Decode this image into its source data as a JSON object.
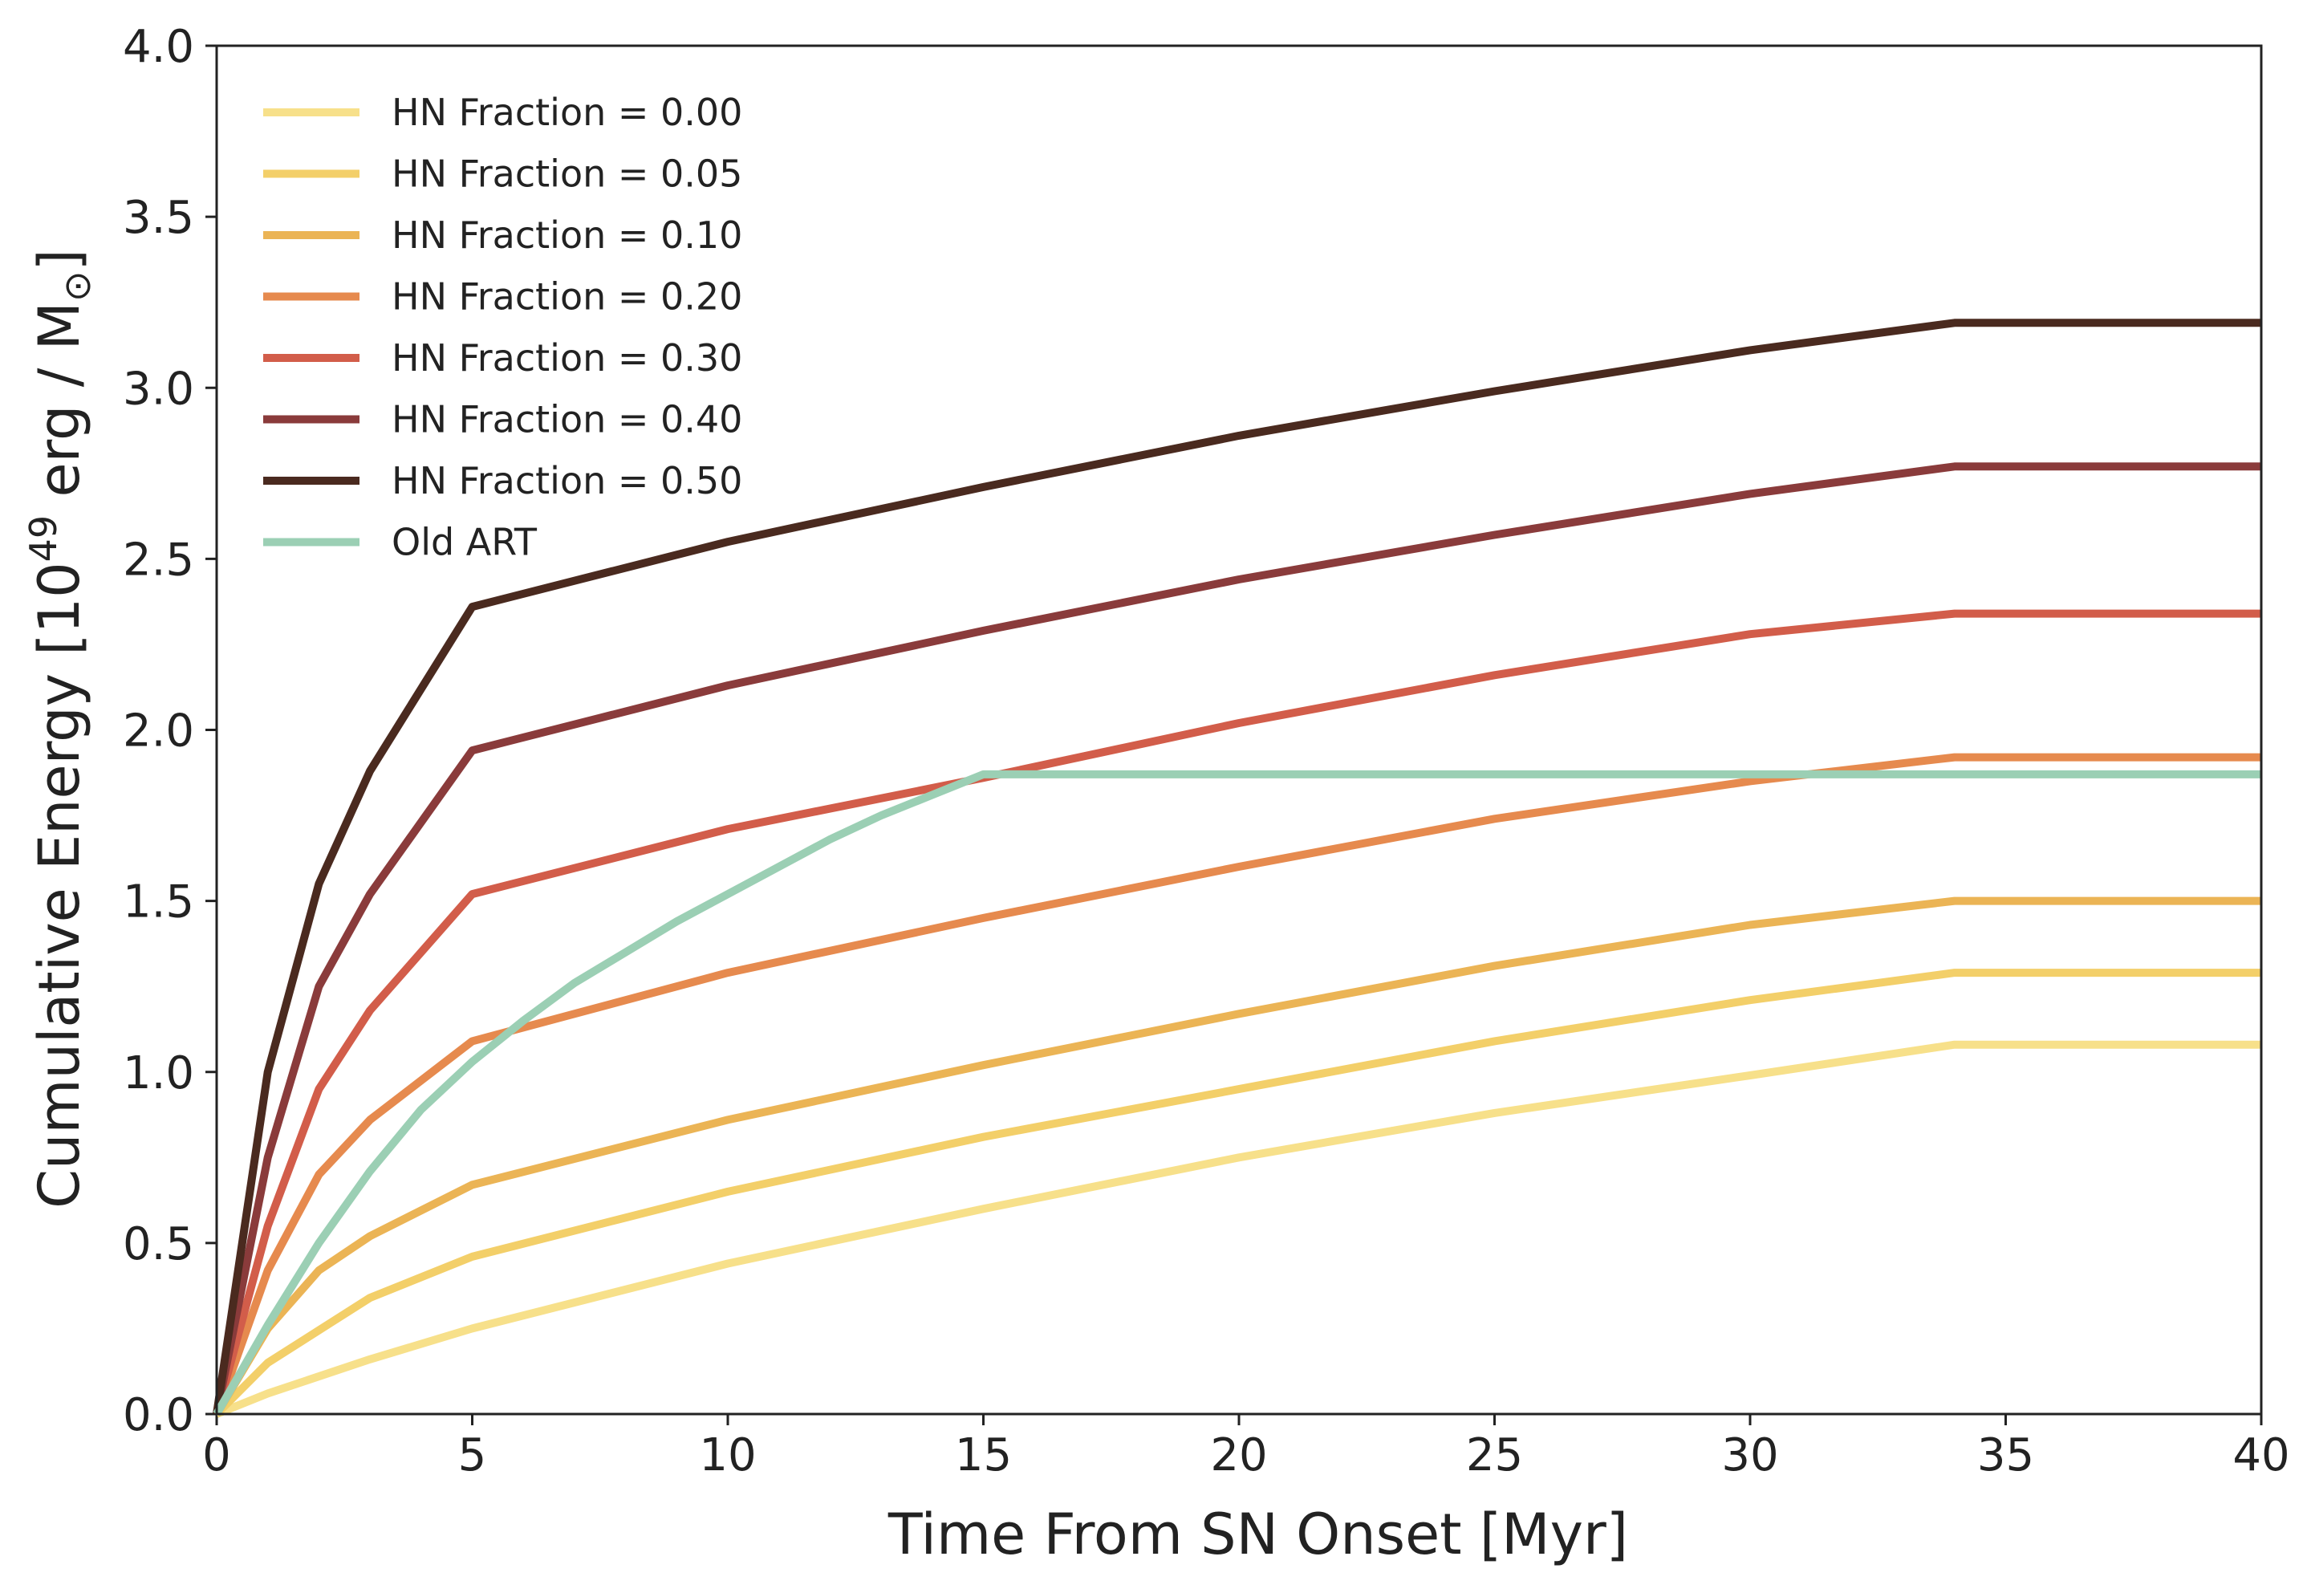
{
  "chart_data": {
    "type": "line",
    "title": "",
    "xlabel": "Time From SN Onset [Myr]",
    "ylabel": {
      "prefix": "Cumulative Energy [10",
      "exponent": "49",
      "middle": " erg / M",
      "subscript": "⊙",
      "suffix": "]"
    },
    "xlim": [
      0,
      40
    ],
    "ylim": [
      0,
      4.0
    ],
    "xticks": [
      "0",
      "5",
      "10",
      "15",
      "20",
      "25",
      "30",
      "35",
      "40"
    ],
    "yticks": [
      "0.0",
      "0.5",
      "1.0",
      "1.5",
      "2.0",
      "2.5",
      "3.0",
      "3.5",
      "4.0"
    ],
    "grid": false,
    "legend_position": "top-left",
    "series": [
      {
        "name": "HN Fraction = 0.00",
        "color": "#f7e08a",
        "x": [
          0,
          1,
          3,
          5,
          10,
          15,
          20,
          25,
          30,
          34,
          40
        ],
        "y": [
          0.0,
          0.06,
          0.16,
          0.25,
          0.44,
          0.6,
          0.75,
          0.88,
          0.99,
          1.08,
          1.08
        ]
      },
      {
        "name": "HN Fraction = 0.05",
        "color": "#f3cf69",
        "x": [
          0,
          1,
          3,
          5,
          10,
          15,
          20,
          25,
          30,
          34,
          40
        ],
        "y": [
          0.0,
          0.15,
          0.34,
          0.46,
          0.65,
          0.81,
          0.95,
          1.09,
          1.21,
          1.29,
          1.29
        ]
      },
      {
        "name": "HN Fraction = 0.10",
        "color": "#ebb455",
        "x": [
          0,
          1,
          2,
          3,
          5,
          10,
          15,
          20,
          25,
          30,
          34,
          40
        ],
        "y": [
          0.0,
          0.25,
          0.42,
          0.52,
          0.67,
          0.86,
          1.02,
          1.17,
          1.31,
          1.43,
          1.5,
          1.5
        ]
      },
      {
        "name": "HN Fraction = 0.20",
        "color": "#e68a4e",
        "x": [
          0,
          1,
          2,
          3,
          5,
          10,
          15,
          20,
          25,
          30,
          34,
          40
        ],
        "y": [
          0.0,
          0.42,
          0.7,
          0.86,
          1.09,
          1.29,
          1.45,
          1.6,
          1.74,
          1.85,
          1.92,
          1.92
        ]
      },
      {
        "name": "HN Fraction = 0.30",
        "color": "#d25d4a",
        "x": [
          0,
          1,
          2,
          3,
          5,
          10,
          15,
          20,
          25,
          30,
          34,
          40
        ],
        "y": [
          0.0,
          0.55,
          0.95,
          1.18,
          1.52,
          1.71,
          1.86,
          2.02,
          2.16,
          2.28,
          2.34,
          2.34
        ]
      },
      {
        "name": "HN Fraction = 0.40",
        "color": "#8a3b3b",
        "x": [
          0,
          1,
          2,
          3,
          5,
          10,
          15,
          20,
          25,
          30,
          34,
          40
        ],
        "y": [
          0.0,
          0.75,
          1.25,
          1.52,
          1.94,
          2.13,
          2.29,
          2.44,
          2.57,
          2.69,
          2.77,
          2.77
        ]
      },
      {
        "name": "HN Fraction = 0.50",
        "color": "#4a2a1f",
        "x": [
          0,
          1,
          2,
          3,
          5,
          10,
          15,
          20,
          25,
          30,
          34,
          40
        ],
        "y": [
          0.0,
          1.0,
          1.55,
          1.88,
          2.36,
          2.55,
          2.71,
          2.86,
          2.99,
          3.11,
          3.19,
          3.19
        ]
      },
      {
        "name": "Old ART",
        "color": "#9bcfb4",
        "x": [
          0,
          1,
          2,
          3,
          4,
          5,
          6,
          7,
          8,
          9,
          10,
          11,
          12,
          13,
          14,
          15,
          40
        ],
        "y": [
          0.0,
          0.26,
          0.5,
          0.71,
          0.89,
          1.03,
          1.15,
          1.26,
          1.35,
          1.44,
          1.52,
          1.6,
          1.68,
          1.75,
          1.81,
          1.87,
          1.87
        ]
      }
    ]
  }
}
